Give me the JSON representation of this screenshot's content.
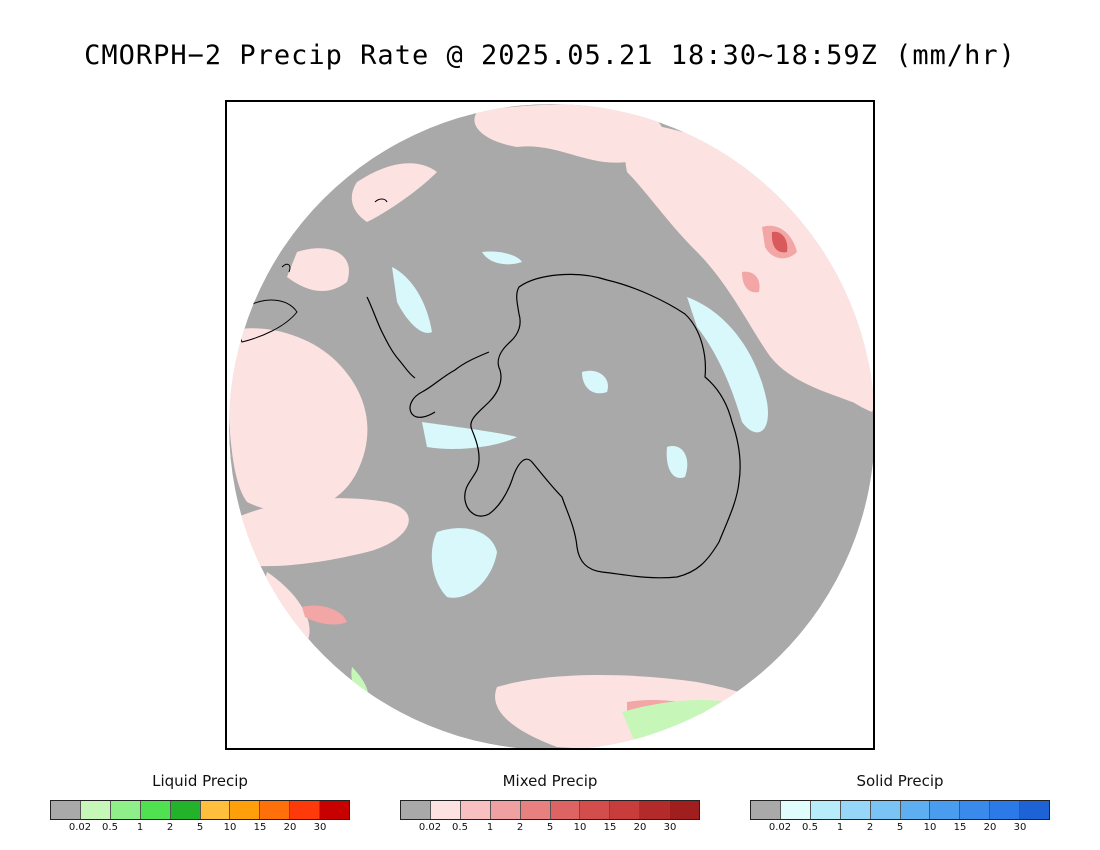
{
  "title": "CMORPH−2 Precip Rate @ 2025.05.21 18:30~18:59Z (mm/hr)",
  "map": {
    "colors": {
      "none": "#a9a9a9",
      "mixed_light": "#fde2e2",
      "mixed_mod": "#f2a6a6",
      "mixed_heavy": "#d95a5a",
      "solid_light": "#d8f8fc",
      "liquid_light": "#c6f7b9",
      "coast": "#000000"
    }
  },
  "legends": [
    {
      "title": "Liquid Precip",
      "colors": [
        "#a9a9a9",
        "#c6f7b9",
        "#8ff08a",
        "#4fe14f",
        "#22b32a",
        "#ffbf3c",
        "#ff9f0a",
        "#ff6f0a",
        "#ff3a0a",
        "#c80000"
      ],
      "ticks": [
        "0.02",
        "0.5",
        "1",
        "2",
        "5",
        "10",
        "15",
        "20",
        "30"
      ]
    },
    {
      "title": "Mixed Precip",
      "colors": [
        "#a9a9a9",
        "#fde2e2",
        "#f8c0c0",
        "#f0a0a0",
        "#e88080",
        "#de6464",
        "#d44d4d",
        "#c83c3c",
        "#b22a2a",
        "#a01e1e"
      ],
      "ticks": [
        "0.02",
        "0.5",
        "1",
        "2",
        "5",
        "10",
        "15",
        "20",
        "30"
      ]
    },
    {
      "title": "Solid Precip",
      "colors": [
        "#a9a9a9",
        "#e0fdfd",
        "#b7ecfb",
        "#96d6f8",
        "#79c3f5",
        "#5eaef2",
        "#4a9cef",
        "#3a8aec",
        "#2c7ae8",
        "#1e63d6"
      ],
      "ticks": [
        "0.02",
        "0.5",
        "1",
        "2",
        "5",
        "10",
        "15",
        "20",
        "30"
      ]
    }
  ]
}
